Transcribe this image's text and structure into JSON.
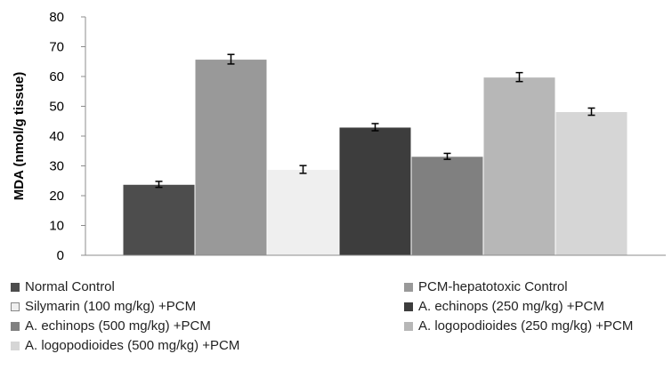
{
  "chart_data": {
    "type": "bar",
    "title": "",
    "xlabel": "",
    "ylabel": "MDA (nmol/g tissue)",
    "ylim": [
      0,
      80
    ],
    "yticks": [
      0,
      10,
      20,
      30,
      40,
      50,
      60,
      70,
      80
    ],
    "grid": false,
    "legend_position": "bottom",
    "series": [
      {
        "name": "Normal Control",
        "value": 23.8,
        "error": 1.0,
        "color": "#4d4d4d"
      },
      {
        "name": "PCM-hepatotoxic Control",
        "value": 65.8,
        "error": 1.6,
        "color": "#999999"
      },
      {
        "name": "Silymarin (100 mg/kg) +PCM",
        "value": 28.8,
        "error": 1.3,
        "color": "#efefef"
      },
      {
        "name": "A. echinops (250 mg/kg) +PCM",
        "value": 43.0,
        "error": 1.2,
        "color": "#3d3d3d"
      },
      {
        "name": "A. echinops (500 mg/kg) +PCM",
        "value": 33.2,
        "error": 1.0,
        "color": "#808080"
      },
      {
        "name": "A. logopodioides (250 mg/kg) +PCM",
        "value": 59.8,
        "error": 1.5,
        "color": "#b7b7b7"
      },
      {
        "name": "A. logopodioides (500 mg/kg) +PCM",
        "value": 48.2,
        "error": 1.2,
        "color": "#d6d6d6"
      }
    ]
  }
}
